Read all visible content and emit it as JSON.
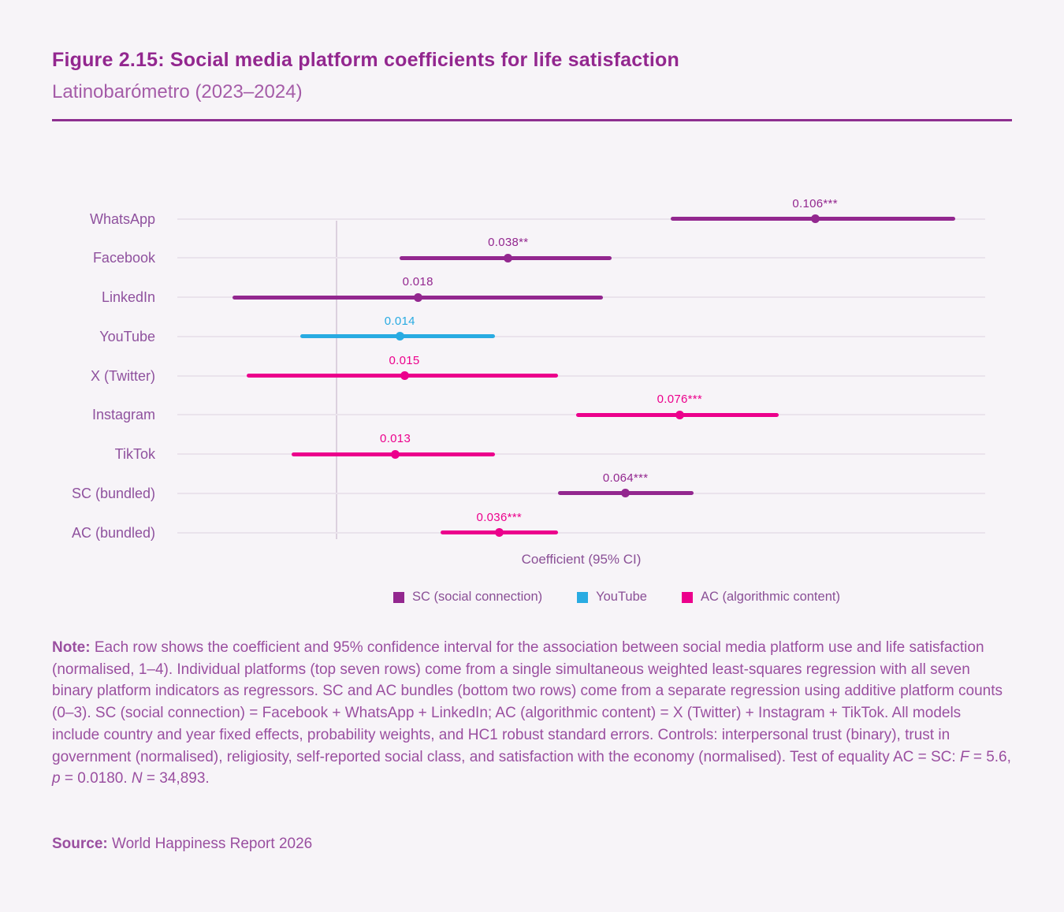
{
  "header": {
    "title": "Figure 2.15: Social media platform coefficients for life satisfaction",
    "subtitle": "Latinobarómetro (2023–2024)"
  },
  "chart_data": {
    "type": "scatter",
    "subtype": "forest-plot-coefficients-with-95ci",
    "xlabel": "Coefficient (95% CI)",
    "xlim": [
      -0.0353,
      0.1437
    ],
    "zero_reference_line": 0,
    "grid": "row-tracks-and-zero-line",
    "rows": [
      {
        "label": "WhatsApp",
        "est": 0.106,
        "lo": 0.074,
        "hi": 0.137,
        "stars": "***",
        "value_label": "0.106***",
        "series": "SC"
      },
      {
        "label": "Facebook",
        "est": 0.038,
        "lo": 0.014,
        "hi": 0.061,
        "stars": "**",
        "value_label": "0.038**",
        "series": "SC"
      },
      {
        "label": "LinkedIn",
        "est": 0.018,
        "lo": -0.023,
        "hi": 0.059,
        "stars": "",
        "value_label": "0.018",
        "series": "SC"
      },
      {
        "label": "YouTube",
        "est": 0.014,
        "lo": -0.008,
        "hi": 0.035,
        "stars": "",
        "value_label": "0.014",
        "series": "YouTube"
      },
      {
        "label": "X (Twitter)",
        "est": 0.015,
        "lo": -0.02,
        "hi": 0.049,
        "stars": "",
        "value_label": "0.015",
        "series": "AC"
      },
      {
        "label": "Instagram",
        "est": 0.076,
        "lo": 0.053,
        "hi": 0.098,
        "stars": "***",
        "value_label": "0.076***",
        "series": "AC"
      },
      {
        "label": "TikTok",
        "est": 0.013,
        "lo": -0.01,
        "hi": 0.035,
        "stars": "",
        "value_label": "0.013",
        "series": "AC"
      },
      {
        "label": "SC (bundled)",
        "est": 0.064,
        "lo": 0.049,
        "hi": 0.079,
        "stars": "***",
        "value_label": "0.064***",
        "series": "SC"
      },
      {
        "label": "AC (bundled)",
        "est": 0.036,
        "lo": 0.023,
        "hi": 0.049,
        "stars": "***",
        "value_label": "0.036***",
        "series": "AC"
      }
    ],
    "series_colors": {
      "SC": "#93278F",
      "YouTube": "#29ABE2",
      "AC": "#EC008C"
    },
    "legend": [
      {
        "label": "SC (social connection)",
        "color": "#93278F"
      },
      {
        "label": "YouTube",
        "color": "#29ABE2"
      },
      {
        "label": "AC (algorithmic content)",
        "color": "#EC008C"
      }
    ],
    "legend_position": "bottom-center"
  },
  "note": {
    "parts": [
      {
        "t": "Note:",
        "b": true
      },
      {
        "t": " Each row shows the coefficient and 95% confidence interval for the association between social media platform use and life satisfaction (normalised, 1–4). Individual platforms (top seven rows) come from a single simultaneous weighted least-squares regression with all seven binary platform indicators as regressors. SC and AC bundles (bottom two rows) come from a separate regression using additive platform counts (0–3). SC (social connection) = Facebook + WhatsApp + LinkedIn; AC (algorithmic content) = X (Twitter) + Instagram + TikTok. All models include country and year fixed effects, probability weights, and HC1 robust standard errors. Controls: interpersonal trust (binary), trust in government (normalised), religiosity, self-reported social class, and satisfaction with the economy (normalised). Test of equality AC = SC: "
      },
      {
        "t": "F",
        "i": true
      },
      {
        "t": " = 5.6, "
      },
      {
        "t": "p",
        "i": true
      },
      {
        "t": " = 0.0180. "
      },
      {
        "t": "N",
        "i": true
      },
      {
        "t": " = 34,893."
      }
    ]
  },
  "source": {
    "parts": [
      {
        "t": "Source:",
        "b": true
      },
      {
        "t": " World Happiness Report 2026"
      }
    ]
  }
}
